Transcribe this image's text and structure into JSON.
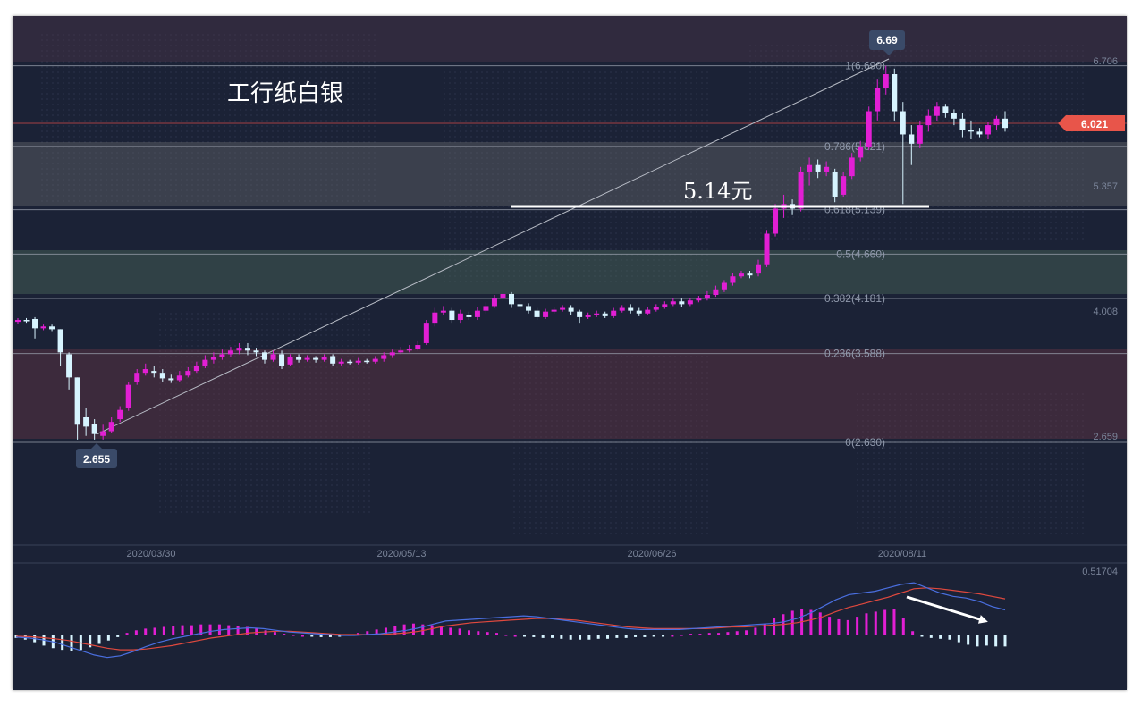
{
  "chart_data": [
    {
      "type": "candlestick",
      "title": "工行纸白银",
      "annotation": "5.14元",
      "current_price": "6.021",
      "low_marker": "2.655",
      "high_marker": "6.69",
      "x_ticks": [
        "2020/03/30",
        "2020/05/13",
        "2020/06/26",
        "2020/08/11"
      ],
      "y_ticks": [
        "6.706",
        "5.357",
        "4.008",
        "2.659"
      ],
      "ylim": [
        2.659,
        6.706
      ],
      "fib_levels": [
        {
          "label": "1(6.690)",
          "value": 6.69
        },
        {
          "label": "0.786(5.821)",
          "value": 5.821
        },
        {
          "label": "0.618(5.139)",
          "value": 5.139
        },
        {
          "label": "0.5(4.660)",
          "value": 4.66
        },
        {
          "label": "0.382(4.181)",
          "value": 4.181
        },
        {
          "label": "0.236(3.588)",
          "value": 3.588
        },
        {
          "label": "0(2.630)",
          "value": 2.63
        }
      ],
      "candles": [
        [
          3.93,
          3.95,
          3.97,
          3.91
        ],
        [
          3.95,
          3.94,
          3.97,
          3.92
        ],
        [
          3.96,
          3.86,
          3.98,
          3.75
        ],
        [
          3.86,
          3.88,
          3.9,
          3.84
        ],
        [
          3.88,
          3.85,
          3.9,
          3.83
        ],
        [
          3.85,
          3.6,
          3.85,
          3.45
        ],
        [
          3.58,
          3.33,
          3.6,
          3.2
        ],
        [
          3.33,
          2.82,
          3.33,
          2.66
        ],
        [
          2.9,
          2.8,
          3.0,
          2.7
        ],
        [
          2.83,
          2.72,
          2.88,
          2.66
        ],
        [
          2.7,
          2.75,
          2.82,
          2.66
        ],
        [
          2.75,
          2.85,
          2.9,
          2.73
        ],
        [
          2.88,
          2.98,
          3.02,
          2.85
        ],
        [
          3.0,
          3.25,
          3.28,
          2.97
        ],
        [
          3.28,
          3.38,
          3.42,
          3.25
        ],
        [
          3.38,
          3.42,
          3.48,
          3.35
        ],
        [
          3.4,
          3.38,
          3.45,
          3.33
        ],
        [
          3.38,
          3.32,
          3.42,
          3.28
        ],
        [
          3.32,
          3.3,
          3.36,
          3.27
        ],
        [
          3.3,
          3.35,
          3.4,
          3.28
        ],
        [
          3.35,
          3.4,
          3.44,
          3.33
        ],
        [
          3.4,
          3.45,
          3.5,
          3.38
        ],
        [
          3.45,
          3.52,
          3.57,
          3.43
        ],
        [
          3.52,
          3.55,
          3.6,
          3.48
        ],
        [
          3.55,
          3.58,
          3.63,
          3.52
        ],
        [
          3.58,
          3.62,
          3.66,
          3.55
        ],
        [
          3.62,
          3.65,
          3.7,
          3.58
        ],
        [
          3.65,
          3.62,
          3.7,
          3.57
        ],
        [
          3.62,
          3.6,
          3.65,
          3.56
        ],
        [
          3.6,
          3.52,
          3.62,
          3.48
        ],
        [
          3.52,
          3.58,
          3.62,
          3.5
        ],
        [
          3.58,
          3.45,
          3.62,
          3.42
        ],
        [
          3.47,
          3.55,
          3.58,
          3.45
        ],
        [
          3.55,
          3.52,
          3.58,
          3.49
        ],
        [
          3.52,
          3.54,
          3.57,
          3.5
        ],
        [
          3.54,
          3.52,
          3.56,
          3.49
        ],
        [
          3.52,
          3.55,
          3.58,
          3.5
        ],
        [
          3.56,
          3.48,
          3.58,
          3.45
        ],
        [
          3.48,
          3.5,
          3.53,
          3.46
        ],
        [
          3.5,
          3.49,
          3.52,
          3.47
        ],
        [
          3.49,
          3.51,
          3.54,
          3.47
        ],
        [
          3.51,
          3.5,
          3.53,
          3.48
        ],
        [
          3.5,
          3.53,
          3.56,
          3.48
        ],
        [
          3.53,
          3.57,
          3.6,
          3.5
        ],
        [
          3.57,
          3.6,
          3.63,
          3.54
        ],
        [
          3.6,
          3.62,
          3.66,
          3.58
        ],
        [
          3.62,
          3.64,
          3.68,
          3.6
        ],
        [
          3.64,
          3.68,
          3.72,
          3.62
        ],
        [
          3.7,
          3.92,
          3.95,
          3.68
        ],
        [
          3.92,
          4.03,
          4.08,
          3.88
        ],
        [
          4.03,
          4.05,
          4.1,
          4.0
        ],
        [
          4.05,
          3.95,
          4.08,
          3.92
        ],
        [
          3.95,
          4.02,
          4.06,
          3.92
        ],
        [
          4.0,
          3.98,
          4.04,
          3.95
        ],
        [
          3.98,
          4.05,
          4.09,
          3.95
        ],
        [
          4.05,
          4.1,
          4.14,
          4.02
        ],
        [
          4.1,
          4.18,
          4.22,
          4.08
        ],
        [
          4.18,
          4.23,
          4.27,
          4.15
        ],
        [
          4.23,
          4.12,
          4.25,
          4.08
        ],
        [
          4.12,
          4.1,
          4.16,
          4.07
        ],
        [
          4.1,
          4.05,
          4.13,
          4.02
        ],
        [
          4.05,
          3.98,
          4.08,
          3.95
        ],
        [
          3.98,
          4.04,
          4.07,
          3.96
        ],
        [
          4.04,
          4.06,
          4.09,
          4.02
        ],
        [
          4.06,
          4.08,
          4.11,
          4.04
        ],
        [
          4.08,
          4.04,
          4.11,
          4.0
        ],
        [
          4.04,
          3.98,
          4.06,
          3.92
        ],
        [
          3.98,
          4.0,
          4.03,
          3.96
        ],
        [
          4.0,
          4.02,
          4.05,
          3.98
        ],
        [
          4.02,
          3.99,
          4.04,
          3.97
        ],
        [
          3.99,
          4.05,
          4.08,
          3.97
        ],
        [
          4.05,
          4.08,
          4.11,
          4.03
        ],
        [
          4.08,
          4.05,
          4.12,
          4.02
        ],
        [
          4.05,
          4.02,
          4.08,
          3.99
        ],
        [
          4.02,
          4.06,
          4.09,
          4.0
        ],
        [
          4.06,
          4.09,
          4.12,
          4.04
        ],
        [
          4.09,
          4.12,
          4.15,
          4.07
        ],
        [
          4.12,
          4.15,
          4.19,
          4.1
        ],
        [
          4.15,
          4.12,
          4.18,
          4.09
        ],
        [
          4.12,
          4.16,
          4.19,
          4.1
        ],
        [
          4.16,
          4.18,
          4.21,
          4.14
        ],
        [
          4.18,
          4.22,
          4.26,
          4.16
        ],
        [
          4.22,
          4.28,
          4.32,
          4.2
        ],
        [
          4.28,
          4.35,
          4.38,
          4.25
        ],
        [
          4.35,
          4.42,
          4.46,
          4.32
        ],
        [
          4.42,
          4.45,
          4.48,
          4.4
        ],
        [
          4.45,
          4.43,
          4.48,
          4.4
        ],
        [
          4.45,
          4.55,
          4.6,
          4.42
        ],
        [
          4.55,
          4.88,
          4.92,
          4.52
        ],
        [
          4.88,
          5.15,
          5.2,
          4.85
        ],
        [
          5.15,
          5.2,
          5.3,
          5.05
        ],
        [
          5.2,
          5.15,
          5.25,
          5.08
        ],
        [
          5.15,
          5.55,
          5.6,
          5.12
        ],
        [
          5.55,
          5.62,
          5.7,
          5.4
        ],
        [
          5.62,
          5.55,
          5.68,
          5.48
        ],
        [
          5.55,
          5.6,
          5.66,
          5.5
        ],
        [
          5.55,
          5.28,
          5.58,
          5.22
        ],
        [
          5.3,
          5.5,
          5.55,
          5.28
        ],
        [
          5.5,
          5.7,
          5.75,
          5.47
        ],
        [
          5.7,
          5.82,
          5.88,
          5.66
        ],
        [
          5.82,
          6.2,
          6.25,
          5.78
        ],
        [
          6.2,
          6.45,
          6.55,
          6.1
        ],
        [
          6.45,
          6.6,
          6.69,
          6.38
        ],
        [
          6.6,
          6.2,
          6.66,
          6.1
        ],
        [
          6.2,
          5.95,
          6.3,
          5.2
        ],
        [
          5.95,
          5.85,
          6.05,
          5.62
        ],
        [
          5.85,
          6.05,
          6.1,
          5.8
        ],
        [
          6.05,
          6.15,
          6.22,
          5.98
        ],
        [
          6.15,
          6.25,
          6.3,
          6.1
        ],
        [
          6.25,
          6.18,
          6.28,
          6.13
        ],
        [
          6.18,
          6.12,
          6.22,
          6.05
        ],
        [
          6.12,
          6.0,
          6.18,
          5.92
        ],
        [
          6.0,
          5.98,
          6.1,
          5.9
        ],
        [
          5.98,
          5.95,
          6.02,
          5.92
        ],
        [
          5.95,
          6.05,
          6.08,
          5.9
        ],
        [
          6.05,
          6.12,
          6.15,
          6.0
        ],
        [
          6.12,
          6.02,
          6.2,
          5.98
        ]
      ],
      "macd": {
        "y_tick": "0.51704",
        "dif": [
          -0.02,
          -0.03,
          -0.05,
          -0.08,
          -0.13,
          -0.18,
          -0.23,
          -0.26,
          -0.24,
          -0.19,
          -0.13,
          -0.08,
          -0.04,
          -0.01,
          0.02,
          0.05,
          0.07,
          0.08,
          0.09,
          0.08,
          0.06,
          0.04,
          0.03,
          0.02,
          0.01,
          0.0,
          0.0,
          0.01,
          0.02,
          0.04,
          0.06,
          0.09,
          0.13,
          0.17,
          0.18,
          0.19,
          0.2,
          0.21,
          0.22,
          0.23,
          0.22,
          0.2,
          0.18,
          0.16,
          0.14,
          0.12,
          0.1,
          0.08,
          0.07,
          0.07,
          0.07,
          0.07,
          0.08,
          0.09,
          0.1,
          0.11,
          0.12,
          0.13,
          0.14,
          0.16,
          0.2,
          0.26,
          0.34,
          0.42,
          0.48,
          0.5,
          0.52,
          0.56,
          0.6,
          0.62,
          0.56,
          0.5,
          0.46,
          0.44,
          0.4,
          0.34,
          0.3
        ],
        "dea": [
          -0.01,
          -0.015,
          -0.025,
          -0.04,
          -0.06,
          -0.09,
          -0.12,
          -0.15,
          -0.17,
          -0.17,
          -0.16,
          -0.14,
          -0.12,
          -0.09,
          -0.06,
          -0.03,
          -0.01,
          0.01,
          0.03,
          0.04,
          0.05,
          0.05,
          0.04,
          0.03,
          0.02,
          0.01,
          0.01,
          0.01,
          0.01,
          0.02,
          0.03,
          0.05,
          0.08,
          0.11,
          0.13,
          0.15,
          0.16,
          0.17,
          0.18,
          0.19,
          0.2,
          0.2,
          0.19,
          0.18,
          0.16,
          0.14,
          0.12,
          0.1,
          0.09,
          0.08,
          0.08,
          0.08,
          0.08,
          0.08,
          0.09,
          0.1,
          0.1,
          0.11,
          0.12,
          0.13,
          0.15,
          0.18,
          0.22,
          0.28,
          0.33,
          0.37,
          0.41,
          0.45,
          0.5,
          0.55,
          0.56,
          0.55,
          0.53,
          0.51,
          0.49,
          0.46,
          0.43
        ],
        "hist": [
          -0.03,
          -0.05,
          -0.08,
          -0.12,
          -0.15,
          -0.17,
          -0.18,
          -0.17,
          -0.14,
          -0.1,
          -0.06,
          -0.02,
          0.03,
          0.06,
          0.08,
          0.09,
          0.1,
          0.11,
          0.12,
          0.12,
          0.13,
          0.13,
          0.13,
          0.12,
          0.11,
          0.1,
          0.08,
          0.06,
          0.04,
          0.02,
          0.01,
          0.0,
          -0.01,
          -0.02,
          -0.02,
          -0.01,
          0.01,
          0.03,
          0.05,
          0.07,
          0.09,
          0.11,
          0.13,
          0.14,
          0.13,
          0.12,
          0.11,
          0.09,
          0.08,
          0.06,
          0.05,
          0.04,
          0.03,
          0.01,
          0.0,
          -0.01,
          -0.02,
          -0.03,
          -0.03,
          -0.04,
          -0.05,
          -0.05,
          -0.05,
          -0.04,
          -0.04,
          -0.03,
          -0.03,
          -0.02,
          -0.02,
          -0.01,
          -0.01,
          0.0,
          0.01,
          0.02,
          0.02,
          0.03,
          0.03,
          0.04,
          0.05,
          0.06,
          0.09,
          0.14,
          0.2,
          0.25,
          0.29,
          0.31,
          0.3,
          0.27,
          0.22,
          0.19,
          0.18,
          0.22,
          0.26,
          0.28,
          0.3,
          0.31,
          0.2,
          0.05,
          -0.01,
          -0.03,
          -0.04,
          -0.05,
          -0.08,
          -0.11,
          -0.13,
          -0.12,
          -0.13,
          -0.13
        ]
      }
    }
  ],
  "colors": {
    "background": "#1b2236",
    "up": "#e21fd4",
    "down": "#d7f4ff",
    "dif": "#4a6fe0",
    "dea": "#e0493e",
    "price_tag": "#e8554a"
  }
}
